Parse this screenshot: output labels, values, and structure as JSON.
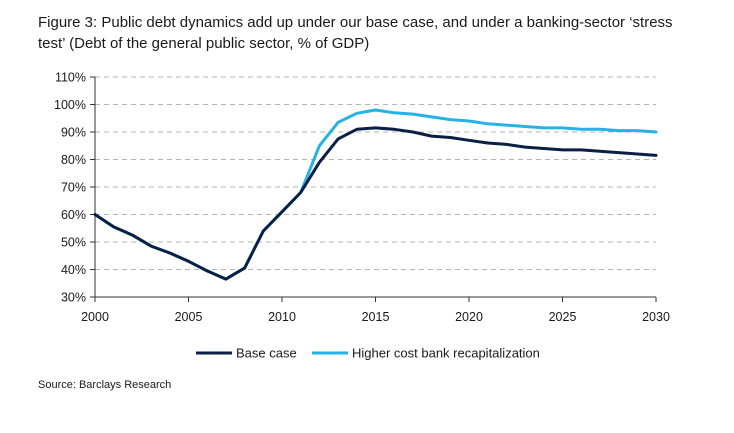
{
  "figure": {
    "title": "Figure 3: Public debt dynamics add up under our base case, and under a banking-sector ‘stress test’ (Debt of the general public sector, % of GDP)",
    "source": "Source: Barclays Research"
  },
  "chart_data": {
    "type": "line",
    "title": "Figure 3: Public debt dynamics add up under our base case, and under a banking-sector ‘stress test’ (Debt of the general public sector, % of GDP)",
    "xlabel": "",
    "ylabel": "",
    "xlim": [
      2000,
      2030
    ],
    "ylim": [
      30,
      110
    ],
    "x_ticks": [
      "2000",
      "2005",
      "2010",
      "2015",
      "2020",
      "2025",
      "2030"
    ],
    "y_ticks": [
      "30%",
      "40%",
      "50%",
      "60%",
      "70%",
      "80%",
      "90%",
      "100%",
      "110%"
    ],
    "grid": "horizontal-dashed",
    "legend_position": "bottom",
    "x": [
      2000,
      2001,
      2002,
      2003,
      2004,
      2005,
      2006,
      2007,
      2008,
      2009,
      2010,
      2011,
      2012,
      2013,
      2014,
      2015,
      2016,
      2017,
      2018,
      2019,
      2020,
      2021,
      2022,
      2023,
      2024,
      2025,
      2026,
      2027,
      2028,
      2029,
      2030
    ],
    "series": [
      {
        "name": "Base case",
        "color": "#0b1f45",
        "values": [
          60,
          55.5,
          52.5,
          48.5,
          46,
          43,
          39.5,
          36.5,
          40.5,
          54,
          61,
          68,
          79,
          87.5,
          91,
          91.5,
          91,
          90,
          88.5,
          88,
          87,
          86,
          85.5,
          84.5,
          84,
          83.5,
          83.5,
          83,
          82.5,
          82,
          81.5
        ]
      },
      {
        "name": "Higher cost bank recapitalization",
        "color": "#27b2e6",
        "values": [
          60,
          55.5,
          52.5,
          48.5,
          46,
          43,
          39.5,
          36.5,
          40.5,
          54,
          61,
          68,
          85,
          93.5,
          96.8,
          98,
          97,
          96.5,
          95.5,
          94.5,
          94,
          93,
          92.5,
          92,
          91.5,
          91.5,
          91,
          91,
          90.5,
          90.5,
          90
        ]
      }
    ]
  }
}
